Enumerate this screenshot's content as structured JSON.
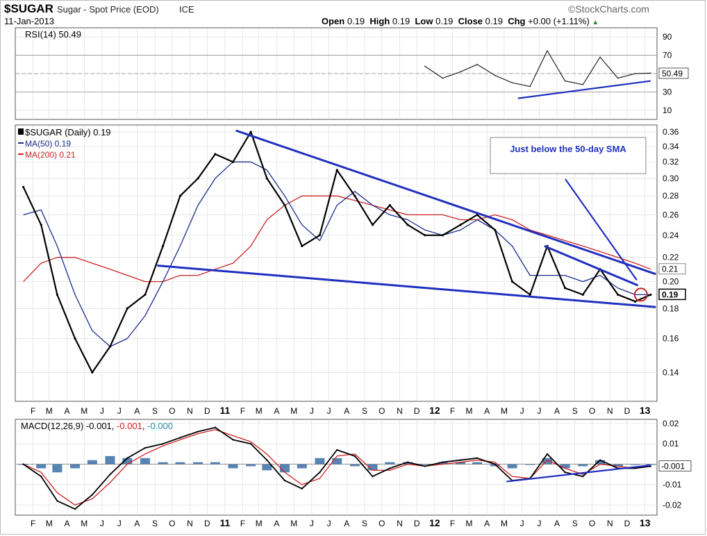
{
  "header": {
    "symbol": "$SUGAR",
    "name": "Sugar - Spot Price (EOD)",
    "exchange": "ICE",
    "date": "11-Jan-2013",
    "watermark": "©StockCharts.com",
    "quote": {
      "open_label": "Open",
      "open": "0.19",
      "high_label": "High",
      "high": "0.19",
      "low_label": "Low",
      "low": "0.19",
      "close_label": "Close",
      "close": "0.19",
      "chg_label": "Chg",
      "chg": "+0.00 (+1.11%)"
    }
  },
  "colors": {
    "price": "#000000",
    "ma50": "#1a2b8c",
    "ma200": "#cc2222",
    "trend": "#1f2fbf",
    "macd_hist": "#3a6ea5",
    "signal": "#cc2222",
    "grid": "#d8d8d8"
  },
  "chart_data": [
    {
      "type": "line",
      "panel": "rsi",
      "legend": [
        {
          "text": "RSI(14) 50.49"
        }
      ],
      "ylim": [
        0,
        100
      ],
      "y_ticks": [
        10,
        30,
        50,
        70,
        90
      ],
      "last_value_label": "50.49",
      "x": [
        "2011-12-15",
        "2012-01-15",
        "2012-02-15",
        "2012-03-15",
        "2012-04-15",
        "2012-05-15",
        "2012-06-15",
        "2012-07-15",
        "2012-08-15",
        "2012-09-15",
        "2012-10-15",
        "2012-11-15",
        "2012-12-15",
        "2013-01-11"
      ],
      "series": [
        {
          "values": [
            58,
            45,
            52,
            60,
            48,
            40,
            36,
            75,
            42,
            38,
            68,
            45,
            50,
            50.49
          ]
        }
      ],
      "trendlines": [
        {
          "from": [
            "2012-05-25",
            23
          ],
          "to": [
            "2013-01-11",
            42
          ]
        }
      ]
    },
    {
      "type": "line",
      "panel": "price",
      "legend": [
        {
          "text": "$SUGAR (Daily) 0.19"
        },
        {
          "text": "MA(50) 0.19"
        },
        {
          "text": "MA(200) 0.21"
        }
      ],
      "ylim": [
        0.125,
        0.37
      ],
      "log_scale": true,
      "y_ticks": [
        0.14,
        0.16,
        0.18,
        0.2,
        0.22,
        0.24,
        0.26,
        0.28,
        0.3,
        0.32,
        0.34,
        0.36
      ],
      "y_tick_labels": [
        "0.14",
        "0.16",
        "0.18",
        "0.20",
        "0.22",
        "0.24",
        "0.26",
        "0.28",
        "0.30",
        "0.32",
        "0.34",
        "0.36"
      ],
      "price_labels": [
        "0.21",
        "0.19"
      ],
      "x_tick_labels": [
        "F",
        "M",
        "A",
        "M",
        "J",
        "J",
        "A",
        "S",
        "O",
        "N",
        "D",
        "11",
        "F",
        "M",
        "A",
        "M",
        "J",
        "J",
        "A",
        "S",
        "O",
        "N",
        "D",
        "12",
        "F",
        "M",
        "A",
        "M",
        "J",
        "J",
        "A",
        "S",
        "O",
        "N",
        "D",
        "13"
      ],
      "x": [
        "2010-01-15",
        "2010-02-15",
        "2010-03-15",
        "2010-04-15",
        "2010-05-15",
        "2010-06-15",
        "2010-07-15",
        "2010-08-15",
        "2010-09-15",
        "2010-10-15",
        "2010-11-15",
        "2010-12-15",
        "2011-01-15",
        "2011-02-15",
        "2011-03-15",
        "2011-04-15",
        "2011-05-15",
        "2011-06-15",
        "2011-07-15",
        "2011-08-15",
        "2011-09-15",
        "2011-10-15",
        "2011-11-15",
        "2011-12-15",
        "2012-01-15",
        "2012-02-15",
        "2012-03-15",
        "2012-04-15",
        "2012-05-15",
        "2012-06-15",
        "2012-07-15",
        "2012-08-15",
        "2012-09-15",
        "2012-10-15",
        "2012-11-15",
        "2012-12-15",
        "2013-01-11"
      ],
      "series": [
        {
          "name": "$SUGAR (Daily)",
          "values": [
            0.29,
            0.25,
            0.19,
            0.16,
            0.14,
            0.155,
            0.18,
            0.19,
            0.23,
            0.28,
            0.3,
            0.33,
            0.32,
            0.36,
            0.3,
            0.27,
            0.23,
            0.24,
            0.31,
            0.28,
            0.25,
            0.27,
            0.25,
            0.24,
            0.24,
            0.25,
            0.26,
            0.245,
            0.2,
            0.19,
            0.23,
            0.195,
            0.19,
            0.21,
            0.19,
            0.185,
            0.19
          ]
        },
        {
          "name": "MA(50)",
          "values": [
            0.26,
            0.265,
            0.23,
            0.19,
            0.165,
            0.155,
            0.16,
            0.175,
            0.2,
            0.23,
            0.27,
            0.3,
            0.32,
            0.32,
            0.31,
            0.28,
            0.25,
            0.235,
            0.27,
            0.285,
            0.27,
            0.26,
            0.255,
            0.245,
            0.24,
            0.245,
            0.255,
            0.245,
            0.23,
            0.205,
            0.205,
            0.205,
            0.2,
            0.205,
            0.195,
            0.19,
            0.19
          ]
        },
        {
          "name": "MA(200)",
          "values": [
            0.2,
            0.215,
            0.22,
            0.22,
            0.215,
            0.21,
            0.205,
            0.2,
            0.2,
            0.205,
            0.205,
            0.21,
            0.215,
            0.23,
            0.255,
            0.27,
            0.28,
            0.28,
            0.28,
            0.275,
            0.27,
            0.265,
            0.26,
            0.26,
            0.26,
            0.255,
            0.255,
            0.26,
            0.255,
            0.245,
            0.24,
            0.235,
            0.23,
            0.225,
            0.22,
            0.215,
            0.21
          ]
        }
      ],
      "trendlines": [
        {
          "from": [
            "2011-01-20",
            0.362
          ],
          "to": [
            "2013-01-20",
            0.206
          ]
        },
        {
          "from": [
            "2010-09-05",
            0.213
          ],
          "to": [
            "2013-01-20",
            0.181
          ]
        },
        {
          "from": [
            "2012-07-10",
            0.23
          ],
          "to": [
            "2012-12-20",
            0.197
          ]
        }
      ],
      "annotations": [
        {
          "text": "Just below the 50-day SMA",
          "points_to": [
            "2012-12-25",
            0.198
          ]
        }
      ]
    },
    {
      "type": "line",
      "panel": "macd",
      "legend": [
        {
          "text": "MACD(12,26,9)",
          "value": "-0.001",
          "value2": "-0.001",
          "value3": "-0.000"
        }
      ],
      "ylim": [
        -0.025,
        0.022
      ],
      "y_ticks": [
        -0.02,
        -0.01,
        0.0,
        0.01,
        0.02
      ],
      "y_tick_labels": [
        "-0.02",
        "-0.01",
        "",
        "0.01",
        "0.02"
      ],
      "last_value_label": "-0.001",
      "x": [
        "2010-01-15",
        "2010-02-15",
        "2010-03-15",
        "2010-04-15",
        "2010-05-15",
        "2010-06-15",
        "2010-07-15",
        "2010-08-15",
        "2010-09-15",
        "2010-10-15",
        "2010-11-15",
        "2010-12-15",
        "2011-01-15",
        "2011-02-15",
        "2011-03-15",
        "2011-04-15",
        "2011-05-15",
        "2011-06-15",
        "2011-07-15",
        "2011-08-15",
        "2011-09-15",
        "2011-10-15",
        "2011-11-15",
        "2011-12-15",
        "2012-01-15",
        "2012-02-15",
        "2012-03-15",
        "2012-04-15",
        "2012-05-15",
        "2012-06-15",
        "2012-07-15",
        "2012-08-15",
        "2012-09-15",
        "2012-10-15",
        "2012-11-15",
        "2012-12-15",
        "2013-01-11"
      ],
      "series": [
        {
          "name": "MACD",
          "values": [
            0.0,
            -0.006,
            -0.018,
            -0.022,
            -0.015,
            -0.005,
            0.003,
            0.008,
            0.01,
            0.013,
            0.016,
            0.018,
            0.012,
            0.01,
            0.002,
            -0.008,
            -0.012,
            -0.004,
            0.007,
            0.004,
            -0.006,
            -0.002,
            0.001,
            -0.001,
            0.001,
            0.002,
            0.003,
            0.0,
            -0.008,
            -0.007,
            0.005,
            -0.004,
            -0.006,
            0.002,
            -0.002,
            -0.002,
            -0.001
          ]
        },
        {
          "name": "Signal",
          "values": [
            0.0,
            -0.004,
            -0.014,
            -0.02,
            -0.017,
            -0.009,
            0.0,
            0.005,
            0.009,
            0.012,
            0.015,
            0.017,
            0.014,
            0.011,
            0.005,
            -0.004,
            -0.01,
            -0.007,
            0.004,
            0.005,
            -0.003,
            -0.003,
            0.0,
            -0.001,
            0.0,
            0.001,
            0.002,
            0.001,
            -0.006,
            -0.007,
            0.002,
            -0.002,
            -0.005,
            0.0,
            -0.001,
            -0.002,
            -0.001
          ]
        }
      ],
      "trendlines": [
        {
          "from": [
            "2012-05-05",
            -0.0085
          ],
          "to": [
            "2013-01-11",
            -0.0005
          ]
        }
      ]
    }
  ]
}
